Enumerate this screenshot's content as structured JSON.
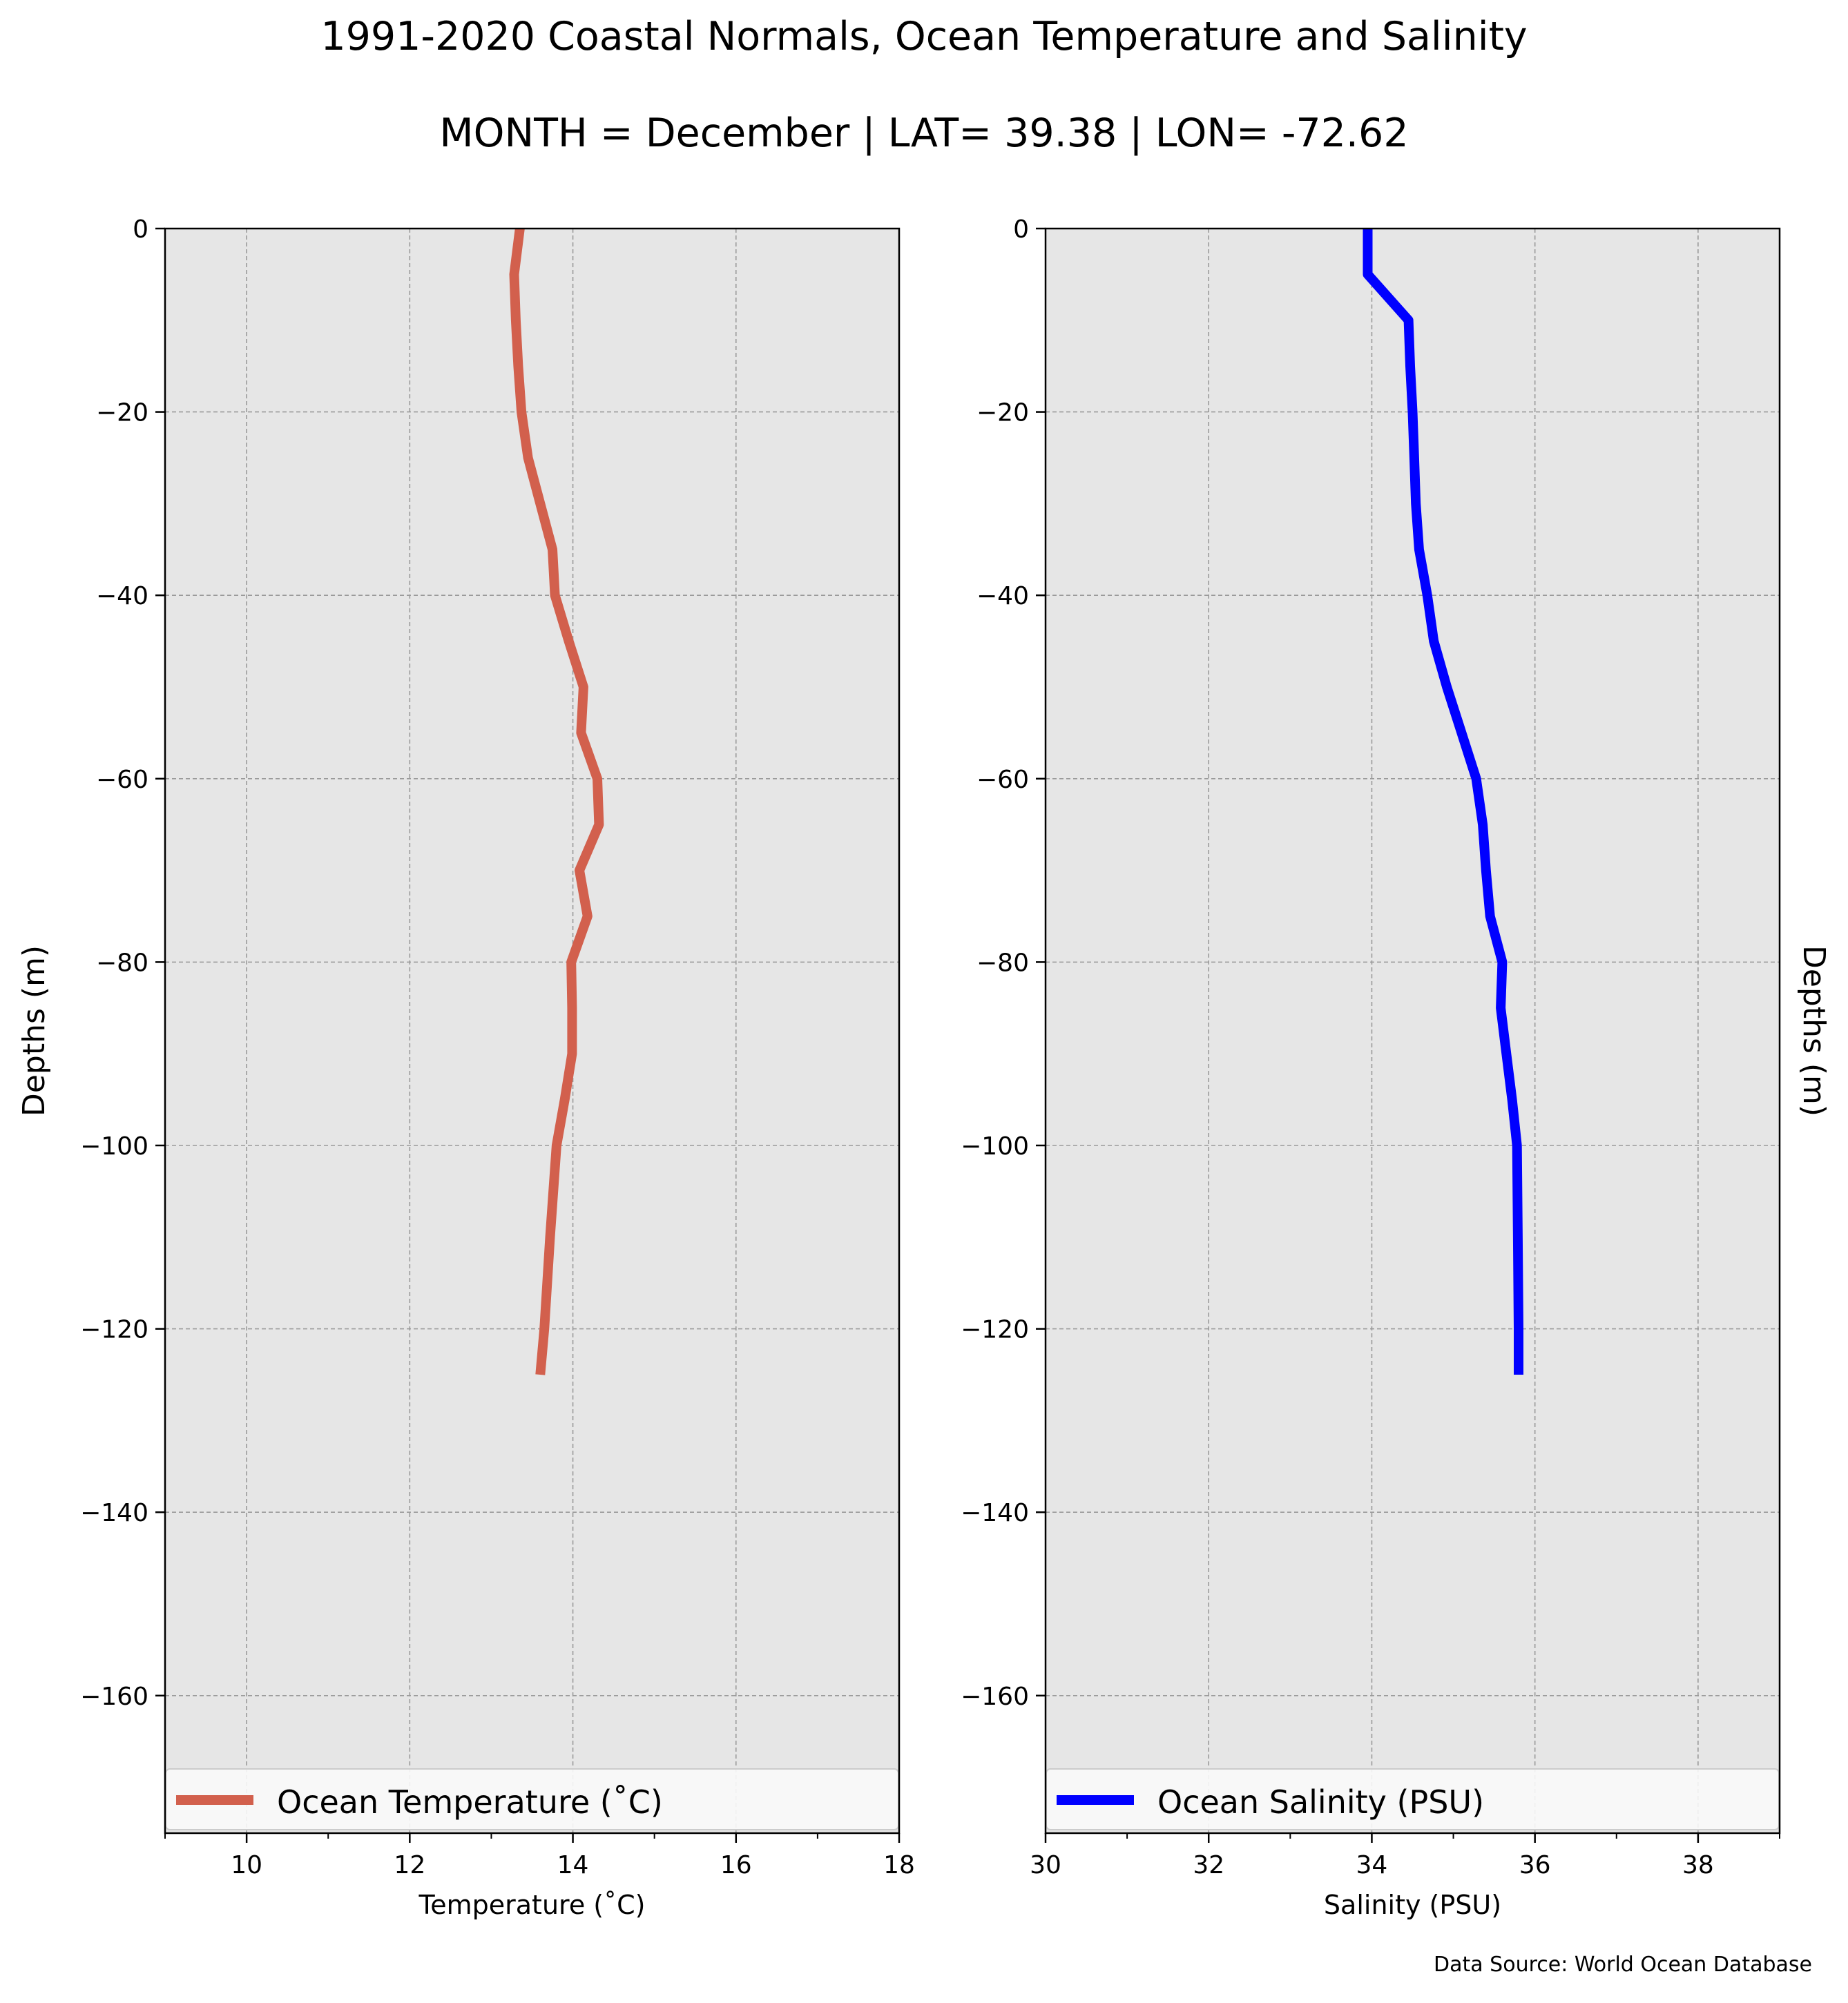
{
  "title": "1991-2020 Coastal Normals, Ocean Temperature and Salinity",
  "subtitle": "MONTH = December | LAT= 39.38 | LON= -72.62",
  "source_note": "Data Source: World Ocean Database",
  "colors": {
    "plot_background": "#e6e6e6",
    "grid": "#9a9a9a",
    "temperature_line": "#d2604d",
    "salinity_line": "#0000ff"
  },
  "chart_data": [
    {
      "type": "line",
      "title": "",
      "xlabel": "Temperature (˚C)",
      "ylabel": "Depths (m)",
      "ylabel_side": "left",
      "xlim": [
        9,
        18
      ],
      "ylim": [
        -175,
        0
      ],
      "xticks": [
        10,
        12,
        14,
        16,
        18
      ],
      "yticks": [
        0,
        -20,
        -40,
        -60,
        -80,
        -100,
        -120,
        -140,
        -160
      ],
      "minor_xticks": [
        9,
        11,
        13,
        15,
        17
      ],
      "grid": true,
      "legend": "bottom, full width",
      "series": [
        {
          "name": "Ocean Temperature (˚C)",
          "color": "#d2604d",
          "x": [
            13.35,
            13.28,
            13.3,
            13.33,
            13.37,
            13.45,
            13.6,
            13.75,
            13.78,
            13.95,
            14.13,
            14.1,
            14.3,
            14.32,
            14.08,
            14.18,
            13.98,
            13.99,
            13.99,
            13.9,
            13.8,
            13.72,
            13.65,
            13.6
          ],
          "y": [
            0,
            -5,
            -10,
            -15,
            -20,
            -25,
            -30,
            -35,
            -40,
            -45,
            -50,
            -55,
            -60,
            -65,
            -70,
            -75,
            -80,
            -85,
            -90,
            -95,
            -100,
            -110,
            -120,
            -125
          ]
        }
      ]
    },
    {
      "type": "line",
      "title": "",
      "xlabel": "Salinity (PSU)",
      "ylabel": "Depths (m)",
      "ylabel_side": "right",
      "xlim": [
        30,
        39
      ],
      "ylim": [
        -175,
        0
      ],
      "xticks": [
        30,
        32,
        34,
        36,
        38
      ],
      "yticks": [
        0,
        -20,
        -40,
        -60,
        -80,
        -100,
        -120,
        -140,
        -160
      ],
      "minor_xticks": [
        31,
        33,
        35,
        37,
        39
      ],
      "grid": true,
      "legend": "bottom, full width",
      "series": [
        {
          "name": "Ocean Salinity (PSU)",
          "color": "#0000ff",
          "x": [
            33.95,
            33.95,
            34.45,
            34.47,
            34.5,
            34.52,
            34.54,
            34.58,
            34.68,
            34.76,
            34.92,
            35.1,
            35.28,
            35.36,
            35.4,
            35.45,
            35.6,
            35.58,
            35.65,
            35.72,
            35.78,
            35.79,
            35.8,
            35.8
          ],
          "y": [
            0,
            -5,
            -10,
            -15,
            -20,
            -25,
            -30,
            -35,
            -40,
            -45,
            -50,
            -55,
            -60,
            -65,
            -70,
            -75,
            -80,
            -85,
            -90,
            -95,
            -100,
            -110,
            -120,
            -125
          ]
        }
      ]
    }
  ]
}
